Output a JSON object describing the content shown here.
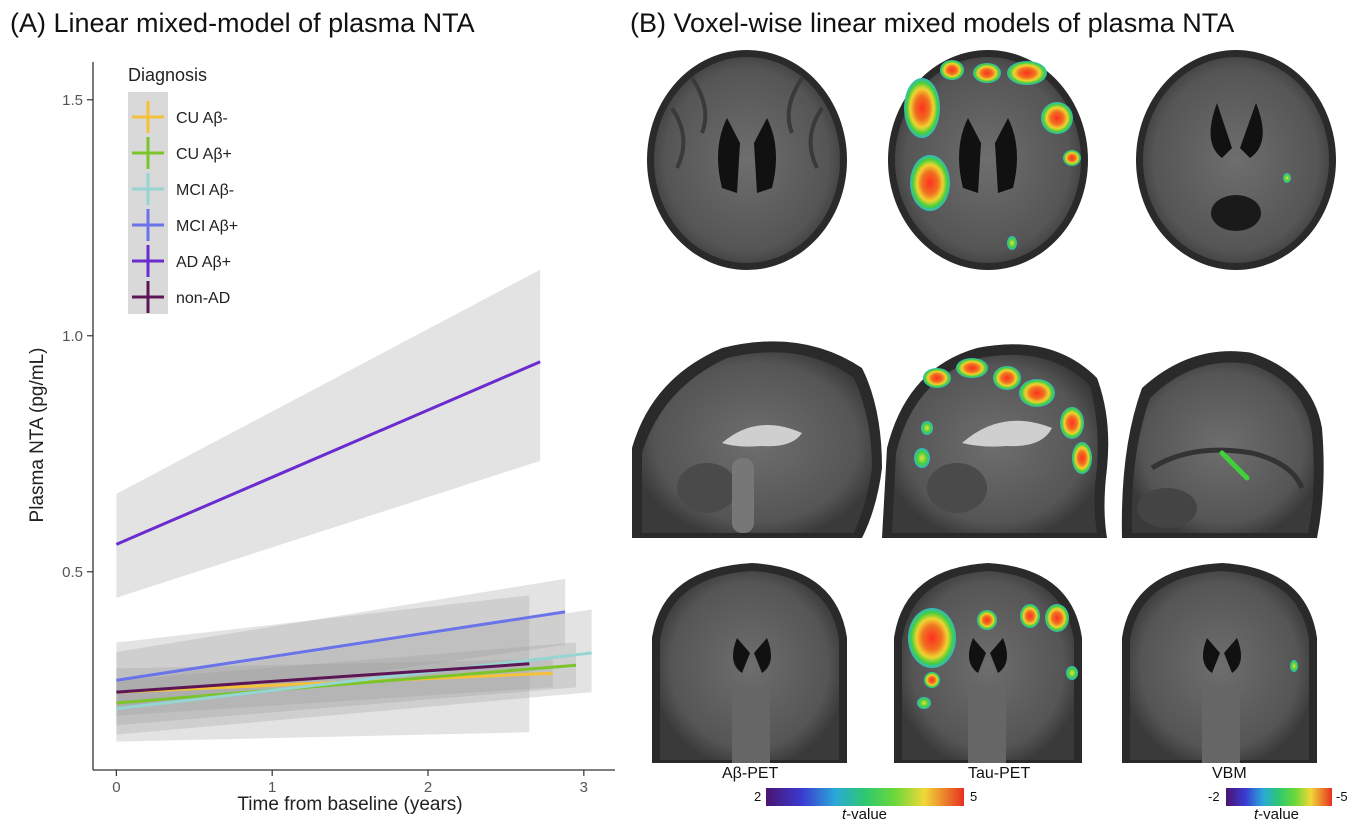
{
  "panels": {
    "a_title": "(A) Linear mixed-model of plasma NTA",
    "b_title": "(B) Voxel-wise linear mixed models of plasma NTA"
  },
  "chart_data": {
    "type": "line",
    "xlabel": "Time from baseline (years)",
    "ylabel": "Plasma NTA (pg/mL)",
    "xlim": [
      -0.15,
      3.2
    ],
    "ylim": [
      0.08,
      1.58
    ],
    "xticks": [
      "0",
      "1",
      "2",
      "3"
    ],
    "yticks": [
      "0.5",
      "1.0",
      "1.5"
    ],
    "grid": false,
    "legend_title": "Diagnosis",
    "legend_position": "top-left",
    "series": [
      {
        "name": "CU Aβ-",
        "color": "#F4C13A",
        "x": [
          0,
          2.8
        ],
        "y": [
          0.245,
          0.285
        ],
        "ci_low": [
          0.195,
          0.255
        ],
        "ci_high": [
          0.295,
          0.315
        ]
      },
      {
        "name": "CU Aβ+",
        "color": "#7BC42A",
        "x": [
          0,
          2.95
        ],
        "y": [
          0.222,
          0.302
        ],
        "ci_low": [
          0.175,
          0.255
        ],
        "ci_high": [
          0.27,
          0.35
        ]
      },
      {
        "name": "MCI Aβ-",
        "color": "#95D5D3",
        "x": [
          0,
          3.05
        ],
        "y": [
          0.21,
          0.328
        ],
        "ci_low": [
          0.155,
          0.245
        ],
        "ci_high": [
          0.265,
          0.42
        ]
      },
      {
        "name": "MCI Aβ+",
        "color": "#6B73E8",
        "x": [
          0,
          2.88
        ],
        "y": [
          0.27,
          0.415
        ],
        "ci_low": [
          0.21,
          0.345
        ],
        "ci_high": [
          0.33,
          0.485
        ]
      },
      {
        "name": "AD Aβ+",
        "color": "#6A2BCF",
        "x": [
          0,
          2.72
        ],
        "y": [
          0.558,
          0.945
        ],
        "ci_low": [
          0.445,
          0.735
        ],
        "ci_high": [
          0.665,
          1.14
        ]
      },
      {
        "name": "non-AD",
        "color": "#5C1655",
        "x": [
          0,
          2.65
        ],
        "y": [
          0.245,
          0.305
        ],
        "ci_low": [
          0.14,
          0.16
        ],
        "ci_high": [
          0.35,
          0.45
        ]
      }
    ]
  },
  "brain_figure": {
    "columns": [
      "Aβ-PET",
      "Tau-PET",
      "VBM"
    ],
    "rows": [
      "axial",
      "sagittal",
      "coronal"
    ],
    "colorbars": [
      {
        "min": "2",
        "max": "5",
        "label": "t-value",
        "label_italic": "t",
        "label_rest": "-value"
      },
      {
        "min": "-2",
        "max": "-5",
        "label": "t-value",
        "label_italic": "t",
        "label_rest": "-value"
      }
    ]
  },
  "colors": {
    "ci_band": "#9a9a9a",
    "brain_bg": "#5a5a5a",
    "heat_red": "#e8282b",
    "heat_yellow": "#f3d436",
    "heat_green": "#3ecf3a"
  }
}
